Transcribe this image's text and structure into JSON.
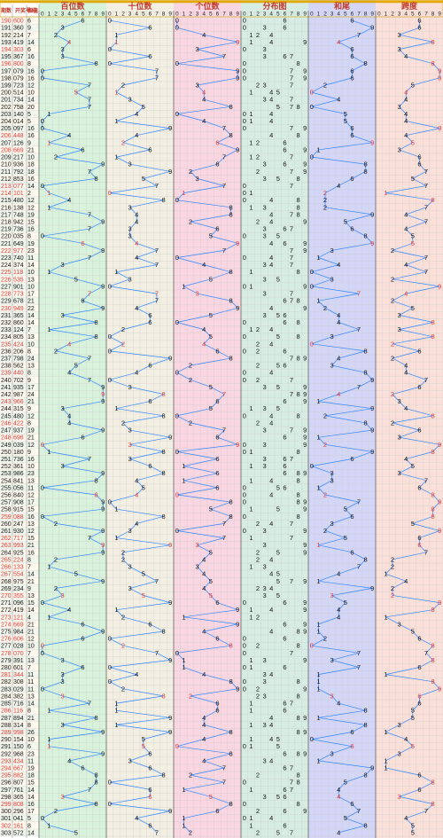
{
  "header": {
    "issue_label": "期数",
    "prize_label": "开奖号码",
    "sum_label": "和值",
    "sections": [
      {
        "title": "百位数",
        "color": "#d9f2dc"
      },
      {
        "title": "十位数",
        "color": "#f3efe3"
      },
      {
        "title": "个位数",
        "color": "#f9d6e1"
      },
      {
        "title": "分布图",
        "color": "#d7ece3"
      },
      {
        "title": "和尾",
        "color": "#d4d6f7"
      },
      {
        "title": "跨度",
        "color": "#fbe0d9"
      }
    ],
    "digits": [
      "0",
      "1",
      "2",
      "3",
      "4",
      "5",
      "6",
      "7",
      "8",
      "9"
    ]
  },
  "colors": {
    "line": "#2e86ff",
    "red": "#e53935",
    "black": "#111111",
    "rowA": "#fffaf0",
    "rowB": "#f3f8ee",
    "grid": "#c9c9c9"
  },
  "chart_data": {
    "type": "table",
    "columns": [
      "期数",
      "开奖号码",
      "和值"
    ],
    "rows": [
      [
        "190",
        "600",
        "6"
      ],
      [
        "191",
        "360",
        "9"
      ],
      [
        "192",
        "214",
        "7"
      ],
      [
        "193",
        "419",
        "14"
      ],
      [
        "194",
        "303",
        "6"
      ],
      [
        "195",
        "367",
        "16"
      ],
      [
        "196",
        "800",
        "8"
      ],
      [
        "197",
        "079",
        "16"
      ],
      [
        "198",
        "079",
        "16"
      ],
      [
        "199",
        "723",
        "12"
      ],
      [
        "200",
        "514",
        "10"
      ],
      [
        "201",
        "734",
        "14"
      ],
      [
        "202",
        "758",
        "20"
      ],
      [
        "203",
        "140",
        "5"
      ],
      [
        "204",
        "014",
        "5"
      ],
      [
        "205",
        "097",
        "16"
      ],
      [
        "206",
        "448",
        "16"
      ],
      [
        "207",
        "126",
        "9"
      ],
      [
        "208",
        "669",
        "21"
      ],
      [
        "209",
        "217",
        "10"
      ],
      [
        "210",
        "936",
        "18"
      ],
      [
        "211",
        "792",
        "18"
      ],
      [
        "212",
        "853",
        "16"
      ],
      [
        "213",
        "077",
        "14"
      ],
      [
        "214",
        "101",
        "2"
      ],
      [
        "215",
        "480",
        "12"
      ],
      [
        "216",
        "138",
        "12"
      ],
      [
        "217",
        "748",
        "19"
      ],
      [
        "218",
        "942",
        "15"
      ],
      [
        "219",
        "736",
        "16"
      ],
      [
        "220",
        "035",
        "8"
      ],
      [
        "221",
        "649",
        "19"
      ],
      [
        "222",
        "977",
        "23"
      ],
      [
        "223",
        "740",
        "11"
      ],
      [
        "224",
        "374",
        "14"
      ],
      [
        "225",
        "118",
        "10"
      ],
      [
        "226",
        "535",
        "13"
      ],
      [
        "227",
        "901",
        "10"
      ],
      [
        "228",
        "773",
        "17"
      ],
      [
        "229",
        "678",
        "21"
      ],
      [
        "230",
        "949",
        "22"
      ],
      [
        "231",
        "365",
        "14"
      ],
      [
        "232",
        "860",
        "14"
      ],
      [
        "233",
        "124",
        "7"
      ],
      [
        "234",
        "805",
        "13"
      ],
      [
        "235",
        "424",
        "10"
      ],
      [
        "236",
        "206",
        "8"
      ],
      [
        "237",
        "798",
        "24"
      ],
      [
        "238",
        "562",
        "13"
      ],
      [
        "239",
        "440",
        "8"
      ],
      [
        "240",
        "702",
        "9"
      ],
      [
        "241",
        "935",
        "17"
      ],
      [
        "242",
        "987",
        "24"
      ],
      [
        "243",
        "966",
        "21"
      ],
      [
        "244",
        "315",
        "9"
      ],
      [
        "245",
        "480",
        "12"
      ],
      [
        "246",
        "422",
        "8"
      ],
      [
        "247",
        "937",
        "19"
      ],
      [
        "248",
        "696",
        "21"
      ],
      [
        "249",
        "039",
        "12"
      ],
      [
        "250",
        "180",
        "9"
      ],
      [
        "251",
        "736",
        "16"
      ],
      [
        "252",
        "361",
        "10"
      ],
      [
        "253",
        "986",
        "23"
      ],
      [
        "254",
        "841",
        "13"
      ],
      [
        "255",
        "056",
        "11"
      ],
      [
        "256",
        "840",
        "12"
      ],
      [
        "257",
        "908",
        "17"
      ],
      [
        "258",
        "915",
        "15"
      ],
      [
        "259",
        "088",
        "16"
      ],
      [
        "260",
        "247",
        "13"
      ],
      [
        "261",
        "930",
        "12"
      ],
      [
        "262",
        "717",
        "15"
      ],
      [
        "263",
        "993",
        "21"
      ],
      [
        "264",
        "925",
        "16"
      ],
      [
        "265",
        "224",
        "8"
      ],
      [
        "266",
        "133",
        "7"
      ],
      [
        "267",
        "554",
        "14"
      ],
      [
        "268",
        "975",
        "21"
      ],
      [
        "269",
        "234",
        "9"
      ],
      [
        "270",
        "355",
        "13"
      ],
      [
        "271",
        "096",
        "15"
      ],
      [
        "272",
        "419",
        "14"
      ],
      [
        "273",
        "121",
        "4"
      ],
      [
        "274",
        "669",
        "21"
      ],
      [
        "275",
        "984",
        "21"
      ],
      [
        "276",
        "606",
        "12"
      ],
      [
        "277",
        "028",
        "10"
      ],
      [
        "278",
        "070",
        "7"
      ],
      [
        "279",
        "391",
        "13"
      ],
      [
        "280",
        "601",
        "7"
      ],
      [
        "281",
        "344",
        "11"
      ],
      [
        "282",
        "308",
        "11"
      ],
      [
        "283",
        "029",
        "11"
      ],
      [
        "284",
        "382",
        "13"
      ],
      [
        "285",
        "716",
        "14"
      ],
      [
        "286",
        "116",
        "8"
      ],
      [
        "287",
        "894",
        "21"
      ],
      [
        "288",
        "314",
        "8"
      ],
      [
        "289",
        "998",
        "26"
      ],
      [
        "290",
        "154",
        "10"
      ],
      [
        "291",
        "150",
        "6"
      ],
      [
        "292",
        "968",
        "23"
      ],
      [
        "293",
        "434",
        "11"
      ],
      [
        "294",
        "667",
        "19"
      ],
      [
        "295",
        "882",
        "18"
      ],
      [
        "296",
        "807",
        "15"
      ],
      [
        "297",
        "761",
        "14"
      ],
      [
        "298",
        "365",
        "14"
      ],
      [
        "299",
        "808",
        "16"
      ],
      [
        "300",
        "296",
        "17"
      ],
      [
        "301",
        "041",
        "5"
      ],
      [
        "302",
        "161",
        "8"
      ],
      [
        "303",
        "572",
        "14"
      ]
    ]
  }
}
